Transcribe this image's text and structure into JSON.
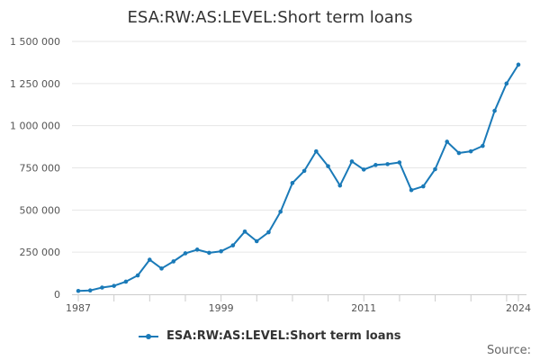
{
  "chart_data": {
    "type": "line",
    "title": "ESA:RW:AS:LEVEL:Short term loans",
    "xlabel": "",
    "ylabel": "",
    "x": [
      1987,
      1988,
      1989,
      1990,
      1991,
      1992,
      1993,
      1994,
      1995,
      1996,
      1997,
      1998,
      1999,
      2000,
      2001,
      2002,
      2003,
      2004,
      2005,
      2006,
      2007,
      2008,
      2009,
      2010,
      2011,
      2012,
      2013,
      2014,
      2015,
      2016,
      2017,
      2018,
      2019,
      2020,
      2021,
      2022,
      2023,
      2024
    ],
    "series": [
      {
        "name": "ESA:RW:AS:LEVEL:Short term loans",
        "values": [
          20000,
          23000,
          40000,
          50000,
          75000,
          112000,
          205000,
          153000,
          195000,
          243000,
          265000,
          246000,
          255000,
          290000,
          372000,
          315000,
          368000,
          490000,
          660000,
          732000,
          848000,
          760000,
          645000,
          788000,
          740000,
          767000,
          772000,
          782000,
          618000,
          640000,
          742000,
          905000,
          838000,
          848000,
          880000,
          1088000,
          1250000,
          1362000
        ]
      }
    ],
    "x_ticks": [
      "1987",
      "1999",
      "2011",
      "2024"
    ],
    "y_ticks": [
      "0",
      "250 000",
      "500 000",
      "750 000",
      "1 000 000",
      "1 250 000",
      "1 500 000"
    ],
    "y_tick_values": [
      0,
      250000,
      500000,
      750000,
      1000000,
      1250000,
      1500000
    ],
    "ylim": [
      0,
      1500000
    ],
    "xlim": [
      1987,
      2024
    ],
    "grid": true,
    "legend_position": "bottom",
    "colors": {
      "series": "#1a7ab8",
      "grid": "#e6e6e6",
      "axis": "#cccccc"
    }
  },
  "source_label": "Source:"
}
